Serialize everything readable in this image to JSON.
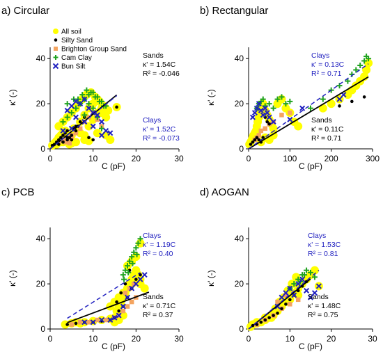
{
  "chart_data": [
    {
      "type": "scatter",
      "title": "a) Circular",
      "xlabel": "C (pF)",
      "ylabel": "κ' (-)",
      "xlim": [
        0,
        30
      ],
      "ylim": [
        0,
        45
      ],
      "xticks": [
        "0",
        "10",
        "20",
        "30"
      ],
      "yticks": [
        "0",
        "20",
        "40"
      ],
      "legend": {
        "placement": "top-left",
        "entries": [
          "All soil",
          "Silty Sand",
          "Brighton Group Sand",
          "Cam Clay",
          "Bun Silt"
        ]
      },
      "annotations": {
        "sands": [
          "Sands",
          "κ' = 1.54C",
          "R² = -0.046"
        ],
        "clays": [
          "Clays",
          "κ' = 1.52C",
          "R² = -0.073"
        ]
      },
      "fits": [
        {
          "name": "Sands",
          "slope": 1.54,
          "style": "solid",
          "x": [
            0,
            15.5
          ]
        },
        {
          "name": "Clays",
          "slope": 1.52,
          "style": "dashed",
          "x": [
            0,
            15.5
          ]
        }
      ],
      "series": [
        {
          "name": "All soil",
          "x": [
            0.5,
            1,
            1.5,
            2,
            2.5,
            3,
            3.5,
            4,
            4.5,
            5,
            2,
            3,
            4,
            5,
            6,
            1.5,
            2.5,
            3.5,
            5.5,
            7,
            8,
            9,
            10,
            11,
            12,
            13,
            6.5,
            7.5,
            8.5,
            9.5,
            10.5,
            11.5,
            12.5,
            13.5,
            4,
            5,
            6,
            7,
            8,
            9,
            10,
            11,
            12,
            15.5,
            3,
            4.5,
            6,
            8,
            9,
            11,
            13,
            14
          ],
          "y": [
            1.5,
            2.5,
            3.5,
            5,
            6,
            7,
            8,
            4,
            3,
            2.5,
            10,
            12,
            14,
            16,
            18,
            2,
            3,
            4,
            9,
            12,
            15,
            18,
            20,
            22,
            16,
            14,
            20,
            22,
            24,
            25,
            23,
            21,
            19,
            17,
            5,
            6,
            8,
            7,
            6,
            10,
            13,
            16,
            18,
            18.5,
            3,
            2,
            3,
            4,
            3.5,
            7,
            6,
            4
          ]
        },
        {
          "name": "Silty Sand",
          "x": [
            0.5,
            1,
            1.5,
            2,
            2.5,
            3,
            3.5,
            4,
            4.5,
            5,
            6,
            7,
            8,
            3,
            4,
            5,
            6,
            2,
            3,
            4,
            9,
            10,
            15.5,
            5.5,
            6.5
          ],
          "y": [
            1.5,
            2,
            3,
            4,
            5,
            6,
            7,
            8,
            5,
            4,
            10,
            12,
            14,
            3,
            4,
            6,
            8,
            2,
            3,
            5,
            5,
            4,
            18.5,
            9,
            10
          ]
        },
        {
          "name": "Brighton Group Sand",
          "x": [
            2,
            3,
            4,
            5,
            6,
            3.5,
            4.5,
            7,
            8,
            9,
            10,
            11,
            12,
            4,
            5
          ],
          "y": [
            3,
            4,
            5,
            6,
            7,
            3,
            2.5,
            9,
            12,
            14,
            16,
            13,
            10,
            4,
            5
          ]
        },
        {
          "name": "Cam Clay",
          "x": [
            5,
            6,
            7,
            8,
            9,
            10,
            11,
            12,
            13,
            6.5,
            7.5,
            8.5,
            9.5,
            10.5,
            11.5,
            12.5,
            4,
            5.5,
            8,
            9,
            10,
            11,
            12,
            3,
            4
          ],
          "y": [
            16,
            18,
            20,
            22,
            24,
            25,
            23,
            21,
            19,
            22,
            24,
            26,
            25,
            23,
            21,
            19,
            20,
            22,
            15,
            20,
            18,
            14,
            9,
            12,
            14
          ]
        },
        {
          "name": "Bun Silt",
          "x": [
            4,
            5,
            6,
            7,
            8,
            9,
            10,
            11,
            12,
            13,
            14,
            6,
            8,
            10,
            12,
            5,
            3
          ],
          "y": [
            17,
            19,
            21,
            20,
            22,
            18,
            16,
            15,
            12,
            8,
            7,
            14,
            12,
            10,
            6,
            9,
            8
          ]
        }
      ]
    },
    {
      "type": "scatter",
      "title": "b) Rectangular",
      "xlabel": "C (pF)",
      "ylabel": "κ' (-)",
      "xlim": [
        0,
        300
      ],
      "ylim": [
        0,
        45
      ],
      "xticks": [
        "0",
        "100",
        "200",
        "300"
      ],
      "yticks": [
        "0",
        "20",
        "40"
      ],
      "annotations": {
        "clays": [
          "Clays",
          "κ' = 0.13C",
          "R² = 0.71"
        ],
        "sands": [
          "Sands",
          "κ' = 0.11C",
          "R² = 0.71"
        ]
      },
      "fits": [
        {
          "name": "Sands",
          "slope": 0.11,
          "style": "solid",
          "x": [
            0,
            290
          ]
        },
        {
          "name": "Clays",
          "slope": 0.13,
          "style": "dashed",
          "x": [
            0,
            290
          ]
        }
      ],
      "series": [
        {
          "name": "All soil",
          "x": [
            2,
            5,
            8,
            10,
            12,
            15,
            18,
            20,
            22,
            25,
            28,
            30,
            35,
            40,
            45,
            50,
            55,
            60,
            70,
            80,
            90,
            100,
            110,
            120,
            180,
            200,
            220,
            240,
            250,
            260,
            270,
            280,
            285,
            290,
            30,
            40,
            50,
            60
          ],
          "y": [
            2,
            3,
            4,
            5,
            6,
            7,
            8,
            10,
            12,
            14,
            16,
            18,
            20,
            17,
            15,
            13,
            11,
            9,
            20,
            22,
            18,
            16,
            12,
            10,
            18,
            20,
            22,
            24,
            26,
            28,
            30,
            32,
            35,
            38,
            3,
            5,
            4,
            6
          ]
        },
        {
          "name": "Silty Sand",
          "x": [
            5,
            10,
            15,
            20,
            25,
            30,
            35,
            40,
            45,
            50,
            220,
            250,
            280
          ],
          "y": [
            2,
            3,
            4,
            5,
            4,
            3,
            5,
            14,
            12,
            11,
            19,
            21,
            23
          ]
        },
        {
          "name": "Brighton Group Sand",
          "x": [
            15,
            20,
            25,
            30,
            40,
            50,
            60,
            80,
            100
          ],
          "y": [
            4,
            5,
            6,
            8,
            9,
            11,
            12,
            15,
            16
          ]
        },
        {
          "name": "Cam Clay",
          "x": [
            20,
            25,
            30,
            35,
            40,
            50,
            60,
            70,
            80,
            90,
            100,
            150,
            180,
            200,
            220,
            240,
            250,
            260,
            270,
            280,
            285,
            290
          ],
          "y": [
            18,
            20,
            21,
            22,
            19,
            20,
            18,
            22,
            23,
            20,
            21,
            18,
            22,
            26,
            28,
            30,
            33,
            35,
            37,
            39,
            41,
            40
          ]
        },
        {
          "name": "Bun Silt",
          "x": [
            10,
            15,
            20,
            25,
            30,
            35,
            40,
            45,
            50,
            60,
            100,
            130,
            220,
            230
          ],
          "y": [
            14,
            16,
            18,
            20,
            17,
            15,
            18,
            16,
            14,
            12,
            13,
            18,
            22,
            24
          ]
        }
      ]
    },
    {
      "type": "scatter",
      "title": "c) PCB",
      "xlabel": "C (pF)",
      "ylabel": "κ' (-)",
      "xlim": [
        0,
        30
      ],
      "ylim": [
        0,
        45
      ],
      "xticks": [
        "0",
        "10",
        "20",
        "30"
      ],
      "yticks": [
        "0",
        "20",
        "40"
      ],
      "annotations": {
        "clays": [
          "Clays",
          "κ' = 1.19C",
          "R² = 0.40"
        ],
        "sands": [
          "Sands",
          "κ' = 0.71C",
          "R² = 0.37"
        ]
      },
      "fits": [
        {
          "name": "Sands",
          "slope": 0.71,
          "style": "solid",
          "x": [
            4,
            23
          ]
        },
        {
          "name": "Clays",
          "slope": 1.19,
          "style": "dashed",
          "x": [
            4,
            21
          ]
        }
      ],
      "series": [
        {
          "name": "All soil",
          "x": [
            3.5,
            5,
            6,
            7,
            8,
            10,
            12,
            14,
            15,
            15.5,
            16,
            16.5,
            17,
            17.5,
            18,
            18.5,
            19,
            19.5,
            20,
            20.5,
            21,
            15,
            16,
            17,
            18,
            19,
            20,
            21,
            14,
            15,
            16,
            17,
            18,
            19,
            20,
            21,
            22
          ],
          "y": [
            2,
            2.5,
            3,
            2.5,
            3,
            3.5,
            4,
            4.5,
            5,
            8,
            10,
            12,
            14,
            16,
            18,
            20,
            22,
            24,
            26,
            24,
            22,
            3,
            4,
            6,
            28,
            30,
            32,
            38,
            10,
            12,
            14,
            16,
            18,
            20,
            22,
            20,
            18
          ]
        },
        {
          "name": "Silty Sand",
          "x": [
            4,
            6,
            8,
            10,
            12,
            14,
            15,
            16,
            17,
            18,
            19,
            20,
            21,
            15.5,
            16.5,
            17.5,
            18.5
          ],
          "y": [
            2,
            2.5,
            3,
            3,
            3.5,
            4,
            5,
            8,
            10,
            14,
            18,
            22,
            24,
            12,
            16,
            20,
            26
          ]
        },
        {
          "name": "Brighton Group Sand",
          "x": [
            5,
            7,
            9,
            11,
            13,
            15,
            16,
            17,
            18,
            19,
            20,
            17.5,
            18.5,
            19.5
          ],
          "y": [
            2,
            3,
            3,
            4,
            4,
            5,
            6,
            8,
            10,
            12,
            14,
            16,
            18,
            20
          ]
        },
        {
          "name": "Cam Clay",
          "x": [
            17,
            17.5,
            18,
            18.5,
            19,
            19.5,
            20,
            20.5,
            21,
            17.2,
            18.2,
            19.2,
            20.2
          ],
          "y": [
            24,
            26,
            28,
            30,
            32,
            34,
            36,
            38,
            40,
            22,
            25,
            29,
            33
          ]
        },
        {
          "name": "Bun Silt",
          "x": [
            8,
            10,
            12,
            14,
            15,
            16,
            17,
            18,
            19,
            20,
            21,
            22
          ],
          "y": [
            3,
            3,
            4,
            4,
            5,
            6,
            10,
            14,
            18,
            20,
            22,
            24
          ]
        }
      ]
    },
    {
      "type": "scatter",
      "title": "d) AOGAN",
      "xlabel": "C (pF)",
      "ylabel": "κ' (-)",
      "xlim": [
        0,
        30
      ],
      "ylim": [
        0,
        45
      ],
      "xticks": [
        "0",
        "10",
        "20",
        "30"
      ],
      "yticks": [
        "0",
        "20",
        "40"
      ],
      "annotations": {
        "clays": [
          "Clays",
          "κ' = 1.53C",
          "R² = 0.81"
        ],
        "sands": [
          "Sands",
          "κ' = 1.48C",
          "R² = 0.75"
        ]
      },
      "fits": [
        {
          "name": "Sands",
          "slope": 1.48,
          "style": "solid",
          "x": [
            0,
            15
          ]
        },
        {
          "name": "Clays",
          "slope": 1.53,
          "style": "dashed",
          "x": [
            0,
            17
          ]
        }
      ],
      "series": [
        {
          "name": "All soil",
          "x": [
            0.5,
            1,
            2,
            3,
            4,
            5,
            6,
            7,
            8,
            9,
            10,
            11,
            12,
            13,
            14,
            15,
            16,
            17,
            2,
            4,
            6,
            8,
            10,
            12,
            5.5,
            6.5,
            7.5,
            8.5,
            9.5,
            10.5,
            11.5
          ],
          "y": [
            1,
            2,
            2.5,
            3,
            4,
            5,
            6,
            8,
            10,
            12,
            14,
            16,
            18,
            20,
            22,
            24,
            26,
            19,
            3,
            5,
            7,
            11,
            13,
            15,
            5,
            9,
            12,
            14,
            17,
            20,
            23
          ]
        },
        {
          "name": "Silty Sand",
          "x": [
            1,
            2,
            3,
            4,
            5,
            6,
            7,
            8,
            9,
            10,
            11,
            12,
            13,
            14
          ],
          "y": [
            1.5,
            2,
            3,
            4,
            5,
            6,
            7,
            9,
            11,
            13,
            15,
            17,
            19,
            21
          ]
        },
        {
          "name": "Brighton Group Sand",
          "x": [
            2,
            4,
            6,
            8,
            10,
            12,
            7,
            9
          ],
          "y": [
            2,
            4,
            6,
            9,
            11,
            13,
            12,
            15
          ]
        },
        {
          "name": "Cam Clay",
          "x": [
            10,
            11,
            12,
            13,
            14,
            15,
            16,
            12.5,
            13.5
          ],
          "y": [
            18,
            20,
            22,
            24,
            26,
            25,
            23,
            21,
            24
          ]
        },
        {
          "name": "Bun Silt",
          "x": [
            7,
            8,
            9,
            10,
            11,
            12,
            13,
            14,
            15,
            16,
            17
          ],
          "y": [
            10,
            14,
            16,
            18,
            15,
            20,
            22,
            17,
            14,
            16,
            19
          ]
        }
      ]
    }
  ],
  "colors": {
    "all_soil": "#ffff00",
    "silty_sand": "#000000",
    "brighton": "#f4a460",
    "cam_clay": "#1fa21f",
    "bun_silt": "#1f1fbf",
    "fit_sands": "#000000",
    "fit_clays": "#1f1fbf",
    "clay_text": "#1f1fbf"
  }
}
